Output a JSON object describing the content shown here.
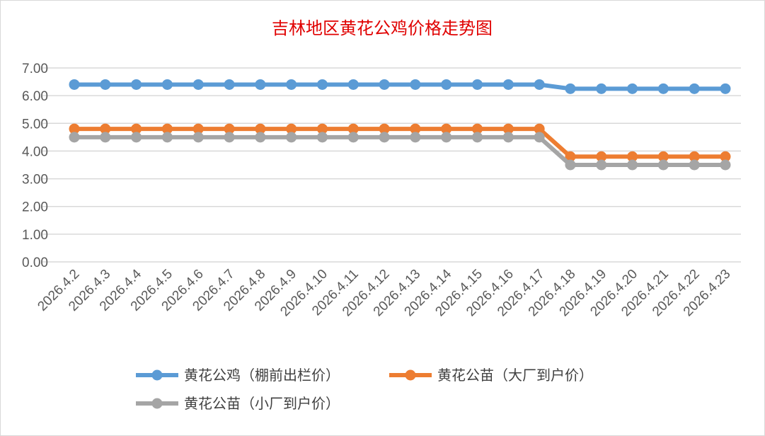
{
  "chart_data": {
    "type": "line",
    "title": "吉林地区黄花公鸡价格走势图",
    "xlabel": "",
    "ylabel": "",
    "ylim": [
      0,
      7
    ],
    "yticks": [
      "0.00",
      "1.00",
      "2.00",
      "3.00",
      "4.00",
      "5.00",
      "6.00",
      "7.00"
    ],
    "grid": true,
    "legend_position": "bottom",
    "categories": [
      "2026.4.2",
      "2026.4.3",
      "2026.4.4",
      "2026.4.5",
      "2026.4.6",
      "2026.4.7",
      "2026.4.8",
      "2026.4.9",
      "2026.4.10",
      "2026.4.11",
      "2026.4.12",
      "2026.4.13",
      "2026.4.14",
      "2026.4.15",
      "2026.4.16",
      "2026.4.17",
      "2026.4.18",
      "2026.4.19",
      "2026.4.20",
      "2026.4.21",
      "2026.4.22",
      "2026.4.23"
    ],
    "series": [
      {
        "name": "黄花公鸡（棚前出栏价）",
        "color": "#5b9bd5",
        "values": [
          6.4,
          6.4,
          6.4,
          6.4,
          6.4,
          6.4,
          6.4,
          6.4,
          6.4,
          6.4,
          6.4,
          6.4,
          6.4,
          6.4,
          6.4,
          6.4,
          6.25,
          6.25,
          6.25,
          6.25,
          6.25,
          6.25
        ]
      },
      {
        "name": "黄花公苗（大厂到户价）",
        "color": "#ed7d31",
        "values": [
          4.8,
          4.8,
          4.8,
          4.8,
          4.8,
          4.8,
          4.8,
          4.8,
          4.8,
          4.8,
          4.8,
          4.8,
          4.8,
          4.8,
          4.8,
          4.8,
          3.8,
          3.8,
          3.8,
          3.8,
          3.8,
          3.8
        ]
      },
      {
        "name": "黄花公苗（小厂到户价）",
        "color": "#a5a5a5",
        "values": [
          4.5,
          4.5,
          4.5,
          4.5,
          4.5,
          4.5,
          4.5,
          4.5,
          4.5,
          4.5,
          4.5,
          4.5,
          4.5,
          4.5,
          4.5,
          4.5,
          3.5,
          3.5,
          3.5,
          3.5,
          3.5,
          3.5
        ]
      }
    ]
  }
}
